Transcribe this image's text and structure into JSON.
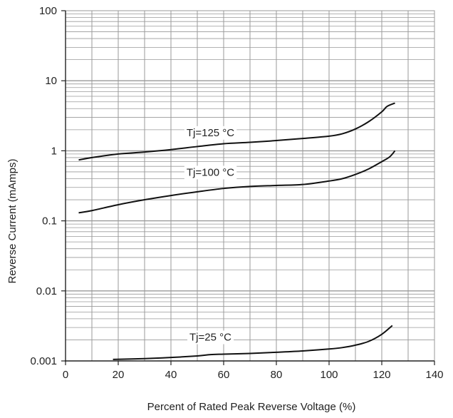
{
  "chart_data": {
    "type": "line",
    "title": "",
    "xlabel": "Percent of Rated Peak Reverse Voltage (%)",
    "ylabel": "Reverse Current (mAmps)",
    "xlim": [
      0,
      140
    ],
    "ylim": [
      0.001,
      100
    ],
    "y_scale": "log",
    "grid": true,
    "x_ticks": [
      "0",
      "20",
      "40",
      "60",
      "80",
      "100",
      "120",
      "140"
    ],
    "y_ticks": [
      "100",
      "10",
      "1",
      "0.1",
      "0.01",
      "0.001"
    ],
    "colors": {
      "line": "#111111",
      "grid": "#9a9a9a",
      "axis": "#222222"
    },
    "series": [
      {
        "name": "Tj=125 °C",
        "x": [
          5,
          10,
          20,
          30,
          40,
          50,
          60,
          70,
          80,
          90,
          100,
          105,
          110,
          115,
          120,
          122,
          125
        ],
        "y": [
          0.74,
          0.8,
          0.9,
          0.96,
          1.04,
          1.15,
          1.26,
          1.32,
          1.4,
          1.5,
          1.62,
          1.75,
          2.05,
          2.6,
          3.6,
          4.3,
          4.8
        ]
      },
      {
        "name": "Tj=100 °C",
        "x": [
          5,
          10,
          20,
          30,
          40,
          50,
          60,
          70,
          80,
          90,
          100,
          105,
          110,
          115,
          120,
          123,
          125
        ],
        "y": [
          0.13,
          0.14,
          0.17,
          0.2,
          0.23,
          0.26,
          0.29,
          0.31,
          0.32,
          0.33,
          0.37,
          0.4,
          0.46,
          0.55,
          0.7,
          0.82,
          1.0
        ]
      },
      {
        "name": "Tj=25 °C",
        "x": [
          18,
          30,
          40,
          50,
          55,
          60,
          70,
          80,
          90,
          100,
          105,
          110,
          115,
          120,
          124
        ],
        "y": [
          0.00105,
          0.00108,
          0.00112,
          0.00118,
          0.00123,
          0.00125,
          0.00128,
          0.00133,
          0.00139,
          0.00148,
          0.00155,
          0.00168,
          0.0019,
          0.0024,
          0.0032
        ]
      }
    ]
  }
}
